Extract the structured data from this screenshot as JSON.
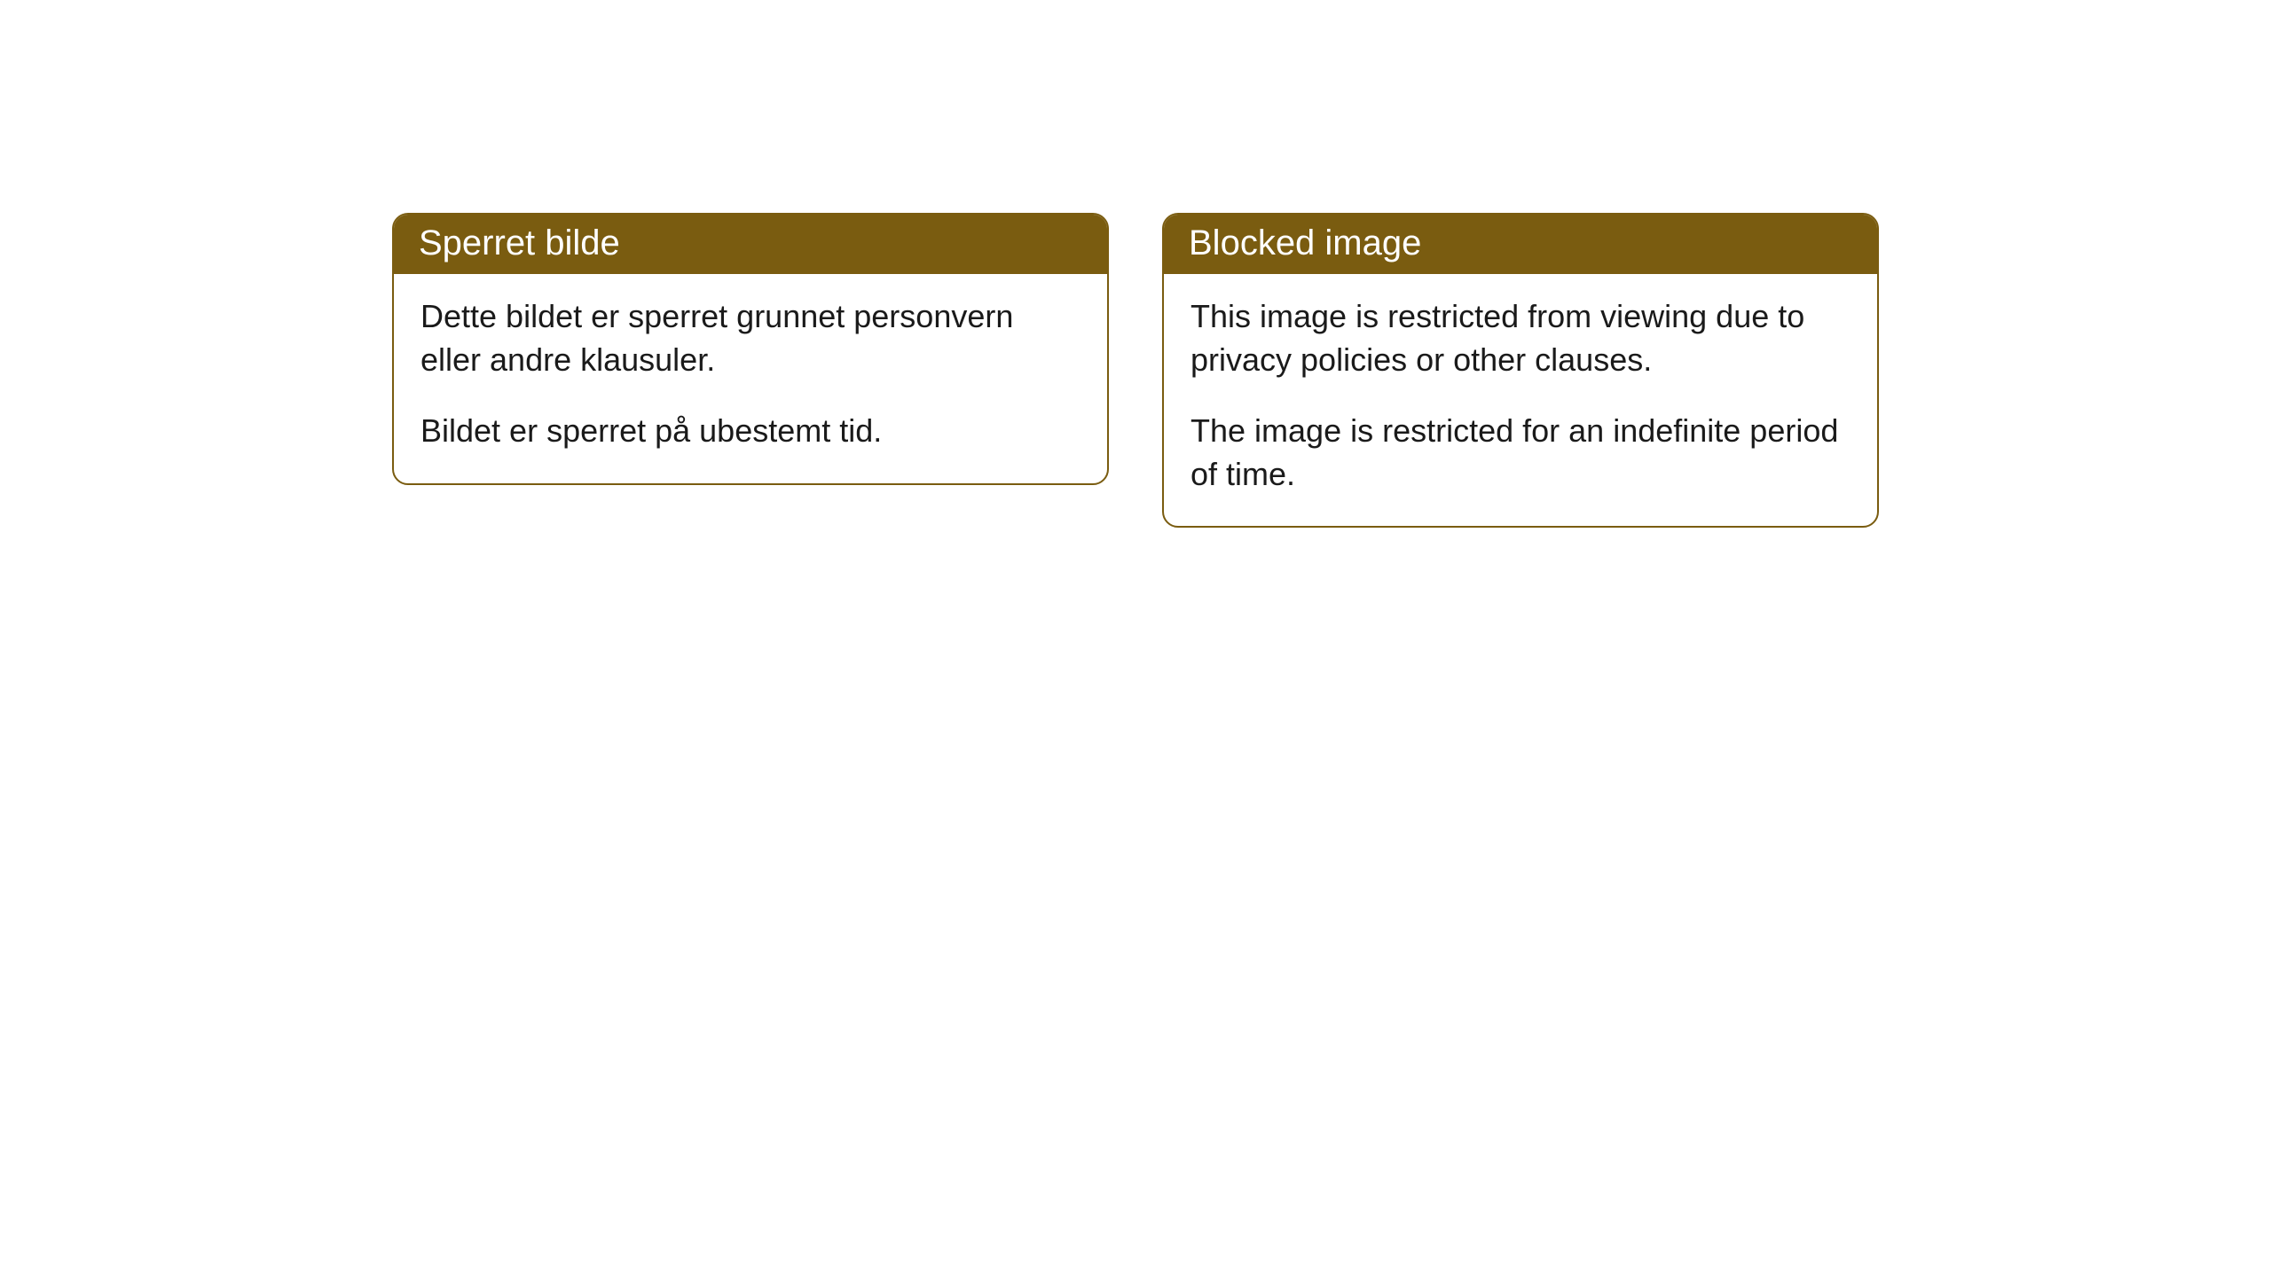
{
  "cards": [
    {
      "title": "Sperret bilde",
      "paragraph1": "Dette bildet er sperret grunnet personvern eller andre klausuler.",
      "paragraph2": "Bildet er sperret på ubestemt tid."
    },
    {
      "title": "Blocked image",
      "paragraph1": "This image is restricted from viewing due to privacy policies or other clauses.",
      "paragraph2": "The image is restricted for an indefinite period of time."
    }
  ],
  "style": {
    "header_bg_color": "#7a5c10",
    "header_text_color": "#ffffff",
    "border_color": "#7a5c10",
    "body_bg_color": "#ffffff",
    "body_text_color": "#1a1a1a",
    "border_radius": 18,
    "title_fontsize": 40,
    "body_fontsize": 36
  }
}
